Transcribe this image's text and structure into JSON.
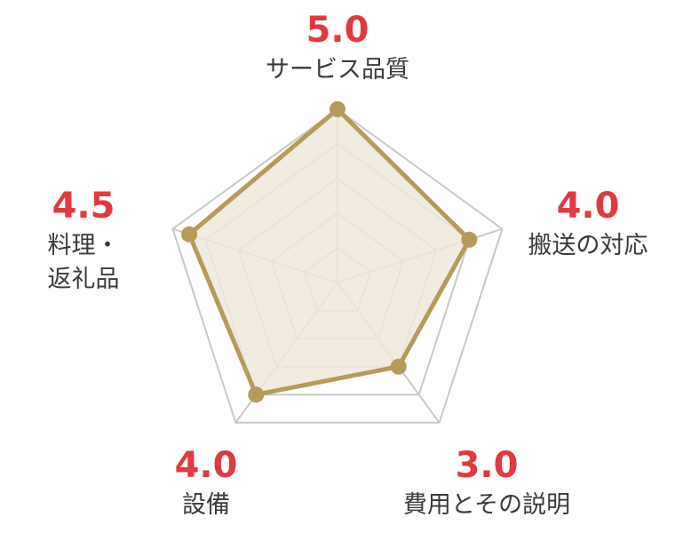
{
  "chart_data": {
    "type": "radar",
    "max": 5,
    "grid_levels": 5,
    "axes": [
      {
        "label_lines": [
          "サービス品質"
        ],
        "value": 5.0,
        "value_text": "5.0"
      },
      {
        "label_lines": [
          "搬送の対応"
        ],
        "value": 4.0,
        "value_text": "4.0"
      },
      {
        "label_lines": [
          "費用とその説明"
        ],
        "value": 3.0,
        "value_text": "3.0"
      },
      {
        "label_lines": [
          "設備"
        ],
        "value": 4.0,
        "value_text": "4.0"
      },
      {
        "label_lines": [
          "料理・",
          "返礼品"
        ],
        "value": 4.5,
        "value_text": "4.5"
      }
    ],
    "colors": {
      "grid": "#c8c8c8",
      "series_line": "#b69a5a",
      "series_fill": "#efe8da",
      "score_text": "#e03a3e",
      "label_text": "#3a3a3a"
    }
  }
}
